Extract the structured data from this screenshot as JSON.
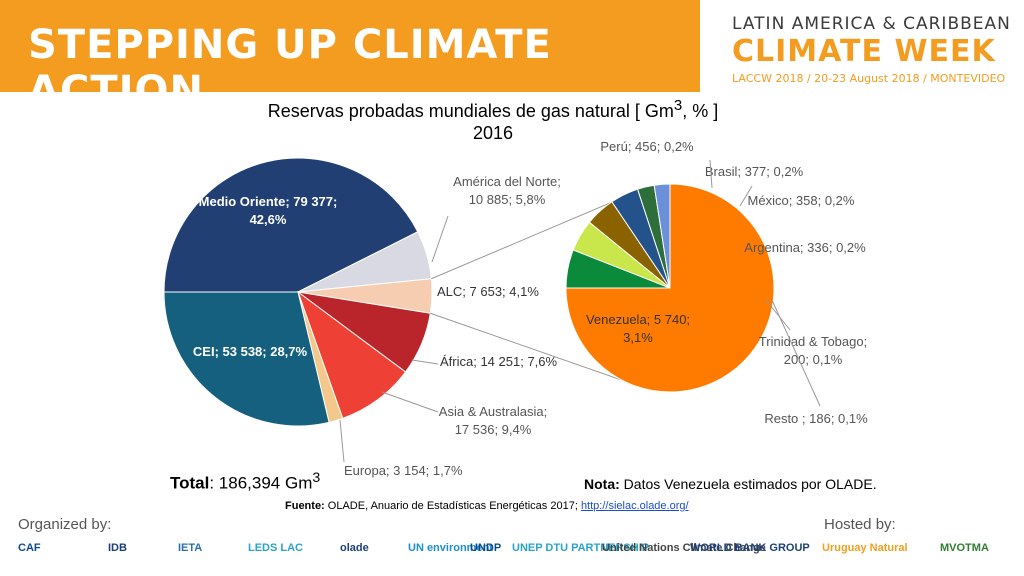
{
  "header": {
    "banner_title": "STEPPING UP CLIMATE ACTION",
    "event_line1": "LATIN AMERICA & CARIBBEAN",
    "event_line2": "CLIMATE WEEK",
    "event_line3": "LACCW 2018 / 20-23 August 2018 / MONTEVIDEO"
  },
  "chart_data": [
    {
      "type": "pie",
      "title": "Reservas probadas mundiales de gas natural [ Gm3, % ]",
      "subtitle": "2016",
      "unit": "Gm3",
      "slices": [
        {
          "label": "Medio Oriente",
          "value": 79377,
          "percent": 42.6,
          "color": "#223f73",
          "text": "Medio Oriente; 79 377; 42,6%"
        },
        {
          "label": "América del Norte",
          "value": 10885,
          "percent": 5.8,
          "color": "#d9d9e3",
          "text": "América del Norte; 10 885; 5,8%"
        },
        {
          "label": "ALC",
          "value": 7653,
          "percent": 4.1,
          "color": "#f6cdb0",
          "text": "ALC; 7 653; 4,1%"
        },
        {
          "label": "África",
          "value": 14251,
          "percent": 7.6,
          "color": "#b9252a",
          "text": "África; 14 251; 7,6%"
        },
        {
          "label": "Asia & Australasia",
          "value": 17536,
          "percent": 9.4,
          "color": "#ee4035",
          "text": "Asia & Australasia; 17 536; 9,4%"
        },
        {
          "label": "Europa",
          "value": 3154,
          "percent": 1.7,
          "color": "#f2c98b",
          "text": "Europa; 3 154; 1,7%"
        },
        {
          "label": "CEI",
          "value": 53538,
          "percent": 28.7,
          "color": "#16607f",
          "text": "CEI; 53 538; 28,7%"
        }
      ],
      "total": {
        "label": "Total",
        "value": ": 186,394 Gm",
        "unit_sup": "3"
      }
    },
    {
      "type": "pie",
      "title": "",
      "slices": [
        {
          "label": "Venezuela",
          "value": 5740,
          "percent": 3.1,
          "color": "#ff7b00",
          "text": "Venezuela; 5 740; 3,1%"
        },
        {
          "label": "Perú",
          "value": 456,
          "percent": 0.2,
          "color": "#0a8a3a",
          "text": "Perú; 456; 0,2%"
        },
        {
          "label": "Brasil",
          "value": 377,
          "percent": 0.2,
          "color": "#c9e64a",
          "text": "Brasil; 377; 0,2%"
        },
        {
          "label": "México",
          "value": 358,
          "percent": 0.2,
          "color": "#8a6300",
          "text": "México; 358; 0,2%"
        },
        {
          "label": "Argentina",
          "value": 336,
          "percent": 0.2,
          "color": "#24528a",
          "text": "Argentina; 336; 0,2%"
        },
        {
          "label": "Trinidad & Tobago",
          "value": 200,
          "percent": 0.1,
          "color": "#2e6e3a",
          "text": "Trinidad & Tobago; 200; 0,1%"
        },
        {
          "label": "Resto",
          "value": 186,
          "percent": 0.1,
          "color": "#6b8fd8",
          "text": "Resto ; 186; 0,1%"
        }
      ]
    }
  ],
  "notes": {
    "nota_label": "Nota:",
    "nota_text": " Datos Venezuela estimados por OLADE.",
    "fuente_label": "Fuente:",
    "fuente_text": " OLADE, Anuario de Estadísticas Energéticas 2017; ",
    "fuente_link": "http://sielac.olade.org/"
  },
  "footer": {
    "organized_by": "Organized by:",
    "hosted_by": "Hosted by:",
    "organizers": [
      "CAF",
      "IDB",
      "IETA",
      "LEDS LAC",
      "olade",
      "UN environment",
      "UNDP",
      "UNEP DTU PARTNERSHIP",
      "United Nations Climate Change",
      "WORLD BANK GROUP"
    ],
    "hosts": [
      "Uruguay Natural",
      "MVOTMA"
    ],
    "colors": [
      "#0a4a8c",
      "#1b3f7a",
      "#2a6fb0",
      "#2aa3c8",
      "#1b3f7a",
      "#1a8fd0",
      "#0a4a8c",
      "#2aa3c8",
      "#444444",
      "#1b3f7a",
      "#f0a020",
      "#2e7d32"
    ]
  }
}
